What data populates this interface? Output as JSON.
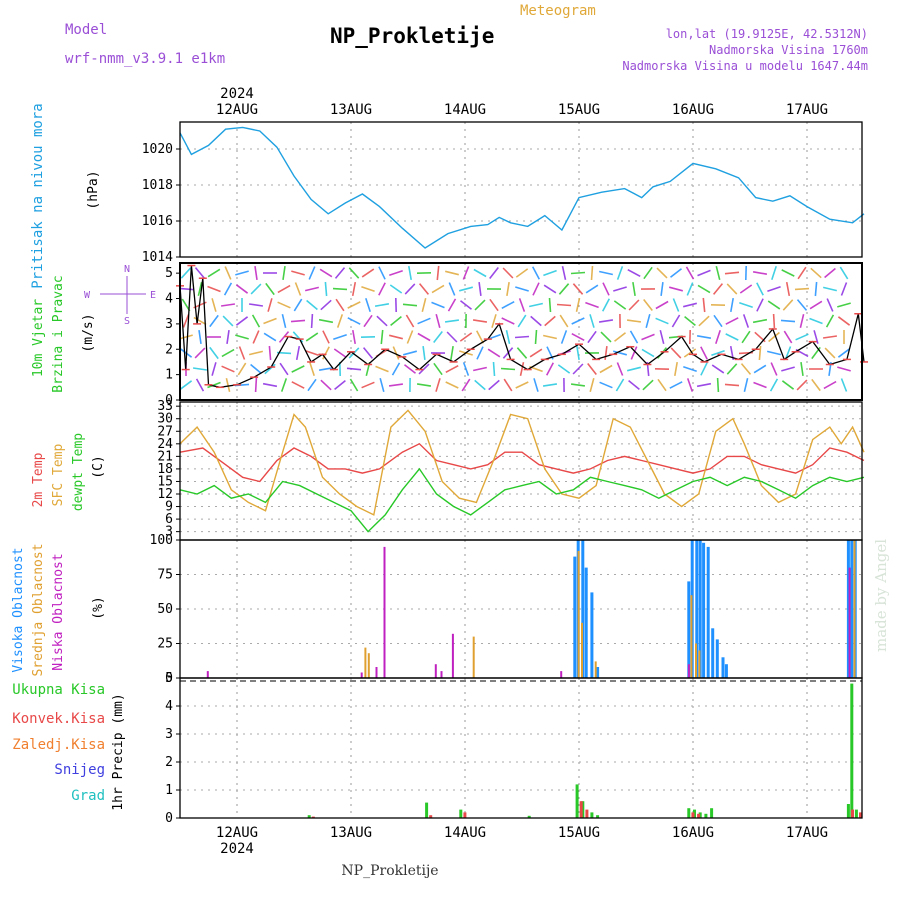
{
  "header": {
    "model_label": "Model",
    "model_value": "wrf-nmm_v3.9.1 e1km",
    "title": "NP_Prokletije",
    "subtitle": "Meteogram",
    "lonlat": "lon,lat (19.9125E, 42.5312N)",
    "elevation": "Nadmorska Visina 1760m",
    "model_elevation": "Nadmorska Visina u modelu 1647.44m",
    "year": "2024",
    "footer_station": "NP_Prokletije",
    "watermark": "made by Angel"
  },
  "colors": {
    "pressure": "#1fa0e0",
    "temp2m": "#e84848",
    "sfc": "#e0a838",
    "dewpt": "#28c828",
    "high": "#1e90ff",
    "mid": "#e0a030",
    "low": "#c020c0",
    "total": "#28c828",
    "conv": "#e84848",
    "froz": "#f08030",
    "snow": "#4040e0",
    "grad": "#20c0c0"
  },
  "chart_data": [
    {
      "type": "line",
      "panel": "pressure",
      "ylabel": [
        "Pritisak na nivou mora",
        "(hPa)"
      ],
      "yticks": [
        "1014",
        "1016",
        "1018",
        "1020"
      ],
      "ylim": [
        1014,
        1021.5
      ],
      "xlabels": [
        "12AUG",
        "13AUG",
        "14AUG",
        "15AUG",
        "16AUG",
        "17AUG"
      ],
      "series": [
        {
          "x": [
            0.0,
            0.1,
            0.25,
            0.4,
            0.55,
            0.7,
            0.85,
            1.0,
            1.15,
            1.3,
            1.45,
            1.6,
            1.75,
            1.95,
            2.15,
            2.35,
            2.55,
            2.7,
            2.8,
            2.9,
            3.05,
            3.2,
            3.35,
            3.5,
            3.7,
            3.9,
            4.05,
            4.15,
            4.3,
            4.5,
            4.7,
            4.9,
            5.05,
            5.2,
            5.35,
            5.5,
            5.7,
            5.9,
            6.0
          ],
          "values": [
            1020.9,
            1019.7,
            1020.2,
            1021.1,
            1021.2,
            1021.0,
            1020.1,
            1018.5,
            1017.2,
            1016.4,
            1017.0,
            1017.5,
            1016.8,
            1015.6,
            1014.5,
            1015.3,
            1015.7,
            1015.8,
            1016.2,
            1015.9,
            1015.7,
            1016.3,
            1015.5,
            1017.3,
            1017.6,
            1017.8,
            1017.3,
            1017.9,
            1018.2,
            1019.2,
            1018.9,
            1018.4,
            1017.3,
            1017.1,
            1017.4,
            1016.8,
            1016.1,
            1015.9,
            1016.4
          ]
        }
      ]
    },
    {
      "type": "scatter",
      "panel": "wind",
      "ylabel": [
        "10m Vjetar",
        "Brzina i Pravac",
        "(m/s)"
      ],
      "compass": [
        "N",
        "W",
        "E",
        "S"
      ],
      "yticks": [
        "0",
        "1",
        "2",
        "3",
        "4",
        "5"
      ],
      "ylim": [
        0,
        5.4
      ],
      "series": [
        {
          "x": [
            0.0,
            0.05,
            0.1,
            0.15,
            0.2,
            0.25,
            0.35,
            0.5,
            0.65,
            0.8,
            0.95,
            1.05,
            1.15,
            1.25,
            1.35,
            1.5,
            1.65,
            1.8,
            1.95,
            2.1,
            2.25,
            2.4,
            2.55,
            2.7,
            2.8,
            2.9,
            3.05,
            3.2,
            3.35,
            3.5,
            3.65,
            3.8,
            3.95,
            4.1,
            4.25,
            4.4,
            4.5,
            4.6,
            4.75,
            4.9,
            5.05,
            5.2,
            5.3,
            5.4,
            5.55,
            5.7,
            5.85,
            5.95,
            6.0
          ],
          "values": [
            4.5,
            1.2,
            5.3,
            3.0,
            4.8,
            0.6,
            0.5,
            0.6,
            0.9,
            1.3,
            2.5,
            2.4,
            1.5,
            1.8,
            1.2,
            1.9,
            1.4,
            2.0,
            1.7,
            1.2,
            1.8,
            1.5,
            2.0,
            2.4,
            3.0,
            1.6,
            1.2,
            1.6,
            1.8,
            2.2,
            1.6,
            1.8,
            2.1,
            1.4,
            1.9,
            2.5,
            1.8,
            1.5,
            1.8,
            1.6,
            2.0,
            2.8,
            1.6,
            1.9,
            2.3,
            1.4,
            1.6,
            3.4,
            1.5
          ]
        }
      ]
    },
    {
      "type": "line",
      "panel": "temperature",
      "ylabel": [
        "2m Temp",
        "SFC Temp",
        "dewpt Temp",
        "(C)"
      ],
      "yticks": [
        "3",
        "6",
        "9",
        "12",
        "15",
        "18",
        "21",
        "24",
        "27",
        "30",
        "33"
      ],
      "ylim": [
        1,
        34
      ],
      "series": [
        {
          "name": "2m Temp",
          "x": [
            0.0,
            0.2,
            0.4,
            0.55,
            0.7,
            0.85,
            1.0,
            1.15,
            1.3,
            1.45,
            1.6,
            1.75,
            1.95,
            2.1,
            2.25,
            2.4,
            2.55,
            2.7,
            2.85,
            3.0,
            3.15,
            3.3,
            3.45,
            3.6,
            3.75,
            3.9,
            4.05,
            4.2,
            4.35,
            4.5,
            4.65,
            4.8,
            4.95,
            5.1,
            5.25,
            5.4,
            5.55,
            5.7,
            5.85,
            6.0
          ],
          "values": [
            22,
            23,
            19,
            16,
            15,
            20,
            23,
            21,
            18,
            18,
            17,
            18,
            22,
            24,
            20,
            19,
            18,
            19,
            22,
            22,
            19,
            18,
            17,
            18,
            20,
            21,
            20,
            19,
            18,
            17,
            18,
            21,
            21,
            19,
            18,
            17,
            19,
            23,
            22,
            20
          ]
        },
        {
          "name": "SFC Temp",
          "x": [
            0.0,
            0.15,
            0.3,
            0.45,
            0.6,
            0.75,
            0.9,
            1.0,
            1.1,
            1.25,
            1.4,
            1.55,
            1.7,
            1.85,
            2.0,
            2.15,
            2.3,
            2.45,
            2.6,
            2.75,
            2.9,
            3.05,
            3.2,
            3.35,
            3.5,
            3.65,
            3.8,
            3.95,
            4.1,
            4.25,
            4.4,
            4.55,
            4.7,
            4.85,
            4.95,
            5.1,
            5.25,
            5.4,
            5.55,
            5.7,
            5.8,
            5.9,
            6.0
          ],
          "values": [
            24,
            28,
            22,
            13,
            10,
            8,
            22,
            31,
            28,
            16,
            12,
            9,
            7,
            28,
            32,
            27,
            15,
            11,
            10,
            20,
            31,
            30,
            18,
            12,
            11,
            14,
            30,
            28,
            20,
            12,
            9,
            12,
            27,
            30,
            24,
            14,
            10,
            12,
            25,
            28,
            24,
            28,
            22
          ]
        },
        {
          "name": "dewpt Temp",
          "x": [
            0.0,
            0.15,
            0.3,
            0.45,
            0.6,
            0.75,
            0.9,
            1.05,
            1.2,
            1.35,
            1.5,
            1.65,
            1.8,
            1.95,
            2.1,
            2.25,
            2.4,
            2.55,
            2.7,
            2.85,
            3.0,
            3.15,
            3.3,
            3.45,
            3.6,
            3.75,
            3.9,
            4.05,
            4.2,
            4.35,
            4.5,
            4.65,
            4.8,
            4.95,
            5.1,
            5.25,
            5.4,
            5.55,
            5.7,
            5.85,
            6.0
          ],
          "values": [
            13,
            12,
            14,
            11,
            12,
            10,
            15,
            14,
            12,
            10,
            8,
            3,
            7,
            13,
            18,
            12,
            9,
            7,
            10,
            13,
            14,
            15,
            12,
            13,
            16,
            15,
            14,
            13,
            11,
            13,
            15,
            16,
            14,
            16,
            15,
            13,
            11,
            14,
            16,
            15,
            16
          ]
        }
      ]
    },
    {
      "type": "bar",
      "panel": "clouds",
      "ylabel": [
        "Visoka Oblacnost",
        "Srednja Oblacnost",
        "Niska Oblacnost",
        "(%)"
      ],
      "yticks": [
        "0",
        "25",
        "50",
        "75",
        "100"
      ],
      "ylim": [
        0,
        100
      ],
      "series": [
        {
          "name": "Visoka Oblacnost",
          "x": [
            3.45,
            3.48,
            3.52,
            3.55,
            3.6,
            3.65,
            4.45,
            4.48,
            4.52,
            4.55,
            4.58,
            4.62,
            4.66,
            4.7,
            4.75,
            4.78,
            5.85,
            5.88,
            5.91
          ],
          "values": [
            88,
            100,
            100,
            80,
            62,
            8,
            70,
            100,
            100,
            100,
            98,
            95,
            36,
            28,
            15,
            10,
            100,
            100,
            100
          ]
        },
        {
          "name": "Srednja Oblacnost",
          "x": [
            1.6,
            1.63,
            2.55,
            3.47,
            3.5,
            3.62,
            4.46,
            4.5,
            4.53,
            5.89
          ],
          "values": [
            22,
            18,
            30,
            92,
            40,
            12,
            60,
            25,
            20,
            100
          ]
        },
        {
          "name": "Niska Oblacnost",
          "x": [
            0.2,
            1.75,
            2.2,
            2.25,
            2.35,
            1.68,
            1.55,
            3.3,
            4.42,
            5.83
          ],
          "values": [
            5,
            95,
            10,
            5,
            32,
            8,
            4,
            5,
            10,
            80
          ]
        }
      ]
    },
    {
      "type": "bar",
      "panel": "precip",
      "ylabel": [
        "Ukupna Kisa",
        "Konvek.Kisa",
        "Zaledj.Kisa",
        "Snijeg",
        "Grad",
        "1hr Precip (mm)"
      ],
      "yticks": [
        "0",
        "1",
        "2",
        "3",
        "4",
        "5"
      ],
      "ylim": [
        0,
        5
      ],
      "xlabels": [
        "12AUG",
        "13AUG",
        "14AUG",
        "15AUG",
        "16AUG",
        "17AUG"
      ],
      "series": [
        {
          "name": "Ukupna Kisa",
          "x": [
            1.12,
            2.15,
            2.45,
            3.05,
            3.47,
            3.52,
            3.6,
            3.65,
            4.45,
            4.5,
            4.55,
            4.6,
            4.65,
            5.85,
            5.88,
            5.92
          ],
          "values": [
            0.1,
            0.55,
            0.3,
            0.08,
            1.2,
            0.6,
            0.2,
            0.1,
            0.35,
            0.3,
            0.2,
            0.15,
            0.35,
            0.5,
            4.8,
            0.3
          ]
        },
        {
          "name": "Konvek.Kisa",
          "x": [
            1.13,
            2.16,
            2.46,
            3.48,
            3.53,
            4.46,
            4.51,
            5.86,
            5.93
          ],
          "values": [
            0.05,
            0.1,
            0.2,
            0.6,
            0.3,
            0.2,
            0.15,
            0.3,
            0.2
          ]
        }
      ]
    }
  ]
}
